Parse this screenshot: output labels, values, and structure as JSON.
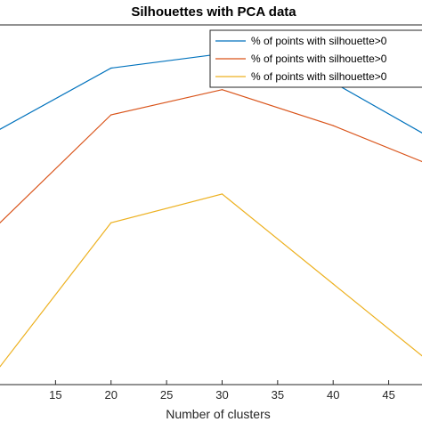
{
  "chart_data": {
    "type": "line",
    "title": "Silhouettes with PCA data",
    "xlabel": "Number of clusters",
    "ylabel": "",
    "xlim": [
      10,
      48
    ],
    "ylim": [
      0,
      100
    ],
    "x_ticks": [
      15,
      20,
      25,
      30,
      35,
      40,
      45
    ],
    "x_tick_labels": [
      "15",
      "20",
      "25",
      "30",
      "35",
      "40",
      "45"
    ],
    "x": [
      10,
      20,
      30,
      40,
      48
    ],
    "legend_position": "top-right",
    "series": [
      {
        "name": "% of points with silhouette>0",
        "color": "#0072BD",
        "values": [
          71,
          88,
          92,
          84,
          70
        ]
      },
      {
        "name": "% of points with silhouette>0",
        "color": "#D95319",
        "values": [
          45,
          75,
          82,
          72,
          62
        ]
      },
      {
        "name": "% of points with silhouette>0",
        "color": "#EDB120",
        "values": [
          5,
          45,
          53,
          28,
          8
        ]
      }
    ]
  }
}
